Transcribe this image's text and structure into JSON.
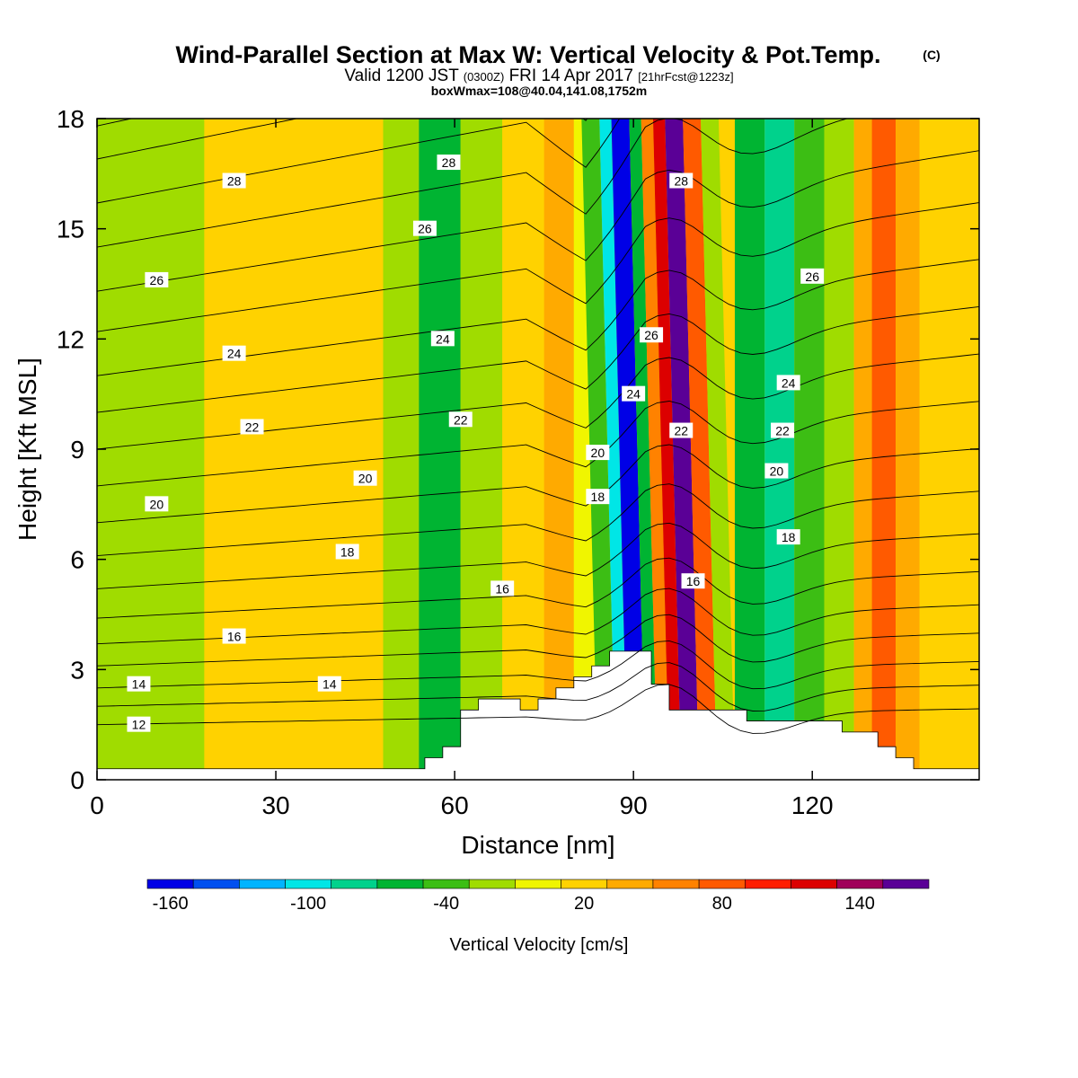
{
  "title": {
    "main": "Wind-Parallel Section at Max W: Vertical Velocity & Pot.Temp.",
    "copyright": "(C)",
    "valid_prefix": "Valid 1200 JST",
    "zulu": "(0300Z)",
    "valid_date": "FRI 14 Apr 2017",
    "forecast": "[21hrFcst@1223z]",
    "subtitle": "boxWmax=108@40.04,141.08,1752m"
  },
  "chart_data": {
    "type": "heatmap",
    "xlabel": "Distance [nm]",
    "ylabel": "Height [Kft MSL]",
    "xlim": [
      0,
      148
    ],
    "ylim": [
      0,
      18
    ],
    "x_ticks": [
      0,
      30,
      60,
      90,
      120
    ],
    "y_ticks": [
      0,
      3,
      6,
      9,
      12,
      15,
      18
    ],
    "colorbar": {
      "label": "Vertical Velocity [cm/s]",
      "tick_labels": [
        "-160",
        "-100",
        "-40",
        "20",
        "80",
        "140"
      ],
      "tick_values": [
        -160,
        -100,
        -40,
        20,
        80,
        140
      ],
      "levels": [
        -170,
        -150,
        -130,
        -110,
        -90,
        -70,
        -50,
        -30,
        -10,
        10,
        30,
        50,
        70,
        90,
        110,
        130,
        150,
        170
      ],
      "colors": [
        "#0000e6",
        "#0050f0",
        "#00b4ff",
        "#00e6e6",
        "#00d28c",
        "#00b432",
        "#3cbe14",
        "#a0dc00",
        "#f0f500",
        "#ffd200",
        "#ffaa00",
        "#ff8200",
        "#ff5a00",
        "#ff1e00",
        "#dc0000",
        "#a0005a",
        "#5a0096"
      ]
    },
    "vertical_velocity_bands": [
      {
        "x0": 0,
        "x1": 18,
        "w": -20
      },
      {
        "x0": 18,
        "x1": 48,
        "w": 10
      },
      {
        "x0": 48,
        "x1": 54,
        "w": -30
      },
      {
        "x0": 54,
        "x1": 61,
        "w": -55
      },
      {
        "x0": 61,
        "x1": 68,
        "w": -20
      },
      {
        "x0": 68,
        "x1": 75,
        "w": 10
      },
      {
        "x0": 75,
        "x1": 80,
        "w": 30
      },
      {
        "x0": 80,
        "x1": 84,
        "w": -10
      },
      {
        "x0": 84,
        "x1": 87,
        "w": -40
      },
      {
        "x0": 87,
        "x1": 89,
        "w": -100
      },
      {
        "x0": 89,
        "x1": 92,
        "w": -160
      },
      {
        "x0": 92,
        "x1": 94,
        "w": -60
      },
      {
        "x0": 94,
        "x1": 96,
        "w": 60
      },
      {
        "x0": 96,
        "x1": 98,
        "w": 120
      },
      {
        "x0": 98,
        "x1": 101,
        "w": 160
      },
      {
        "x0": 101,
        "x1": 104,
        "w": 80
      },
      {
        "x0": 104,
        "x1": 107,
        "w": -20
      },
      {
        "x0": 107,
        "x1": 112,
        "w": -60
      },
      {
        "x0": 112,
        "x1": 117,
        "w": -80
      },
      {
        "x0": 117,
        "x1": 122,
        "w": -50
      },
      {
        "x0": 122,
        "x1": 127,
        "w": -20
      },
      {
        "x0": 127,
        "x1": 130,
        "w": 40
      },
      {
        "x0": 130,
        "x1": 134,
        "w": 80
      },
      {
        "x0": 134,
        "x1": 138,
        "w": 40
      },
      {
        "x0": 138,
        "x1": 148,
        "w": 20
      }
    ],
    "terrain": [
      [
        0,
        0.3
      ],
      [
        55,
        0.3
      ],
      [
        55,
        0.6
      ],
      [
        58,
        0.6
      ],
      [
        58,
        0.9
      ],
      [
        61,
        0.9
      ],
      [
        61,
        1.9
      ],
      [
        64,
        1.9
      ],
      [
        64,
        2.2
      ],
      [
        71,
        2.2
      ],
      [
        71,
        1.9
      ],
      [
        74,
        1.9
      ],
      [
        74,
        2.2
      ],
      [
        77,
        2.2
      ],
      [
        77,
        2.5
      ],
      [
        80,
        2.5
      ],
      [
        80,
        2.8
      ],
      [
        83,
        2.8
      ],
      [
        83,
        3.1
      ],
      [
        86,
        3.1
      ],
      [
        86,
        3.5
      ],
      [
        93,
        3.5
      ],
      [
        93,
        2.6
      ],
      [
        96,
        2.6
      ],
      [
        96,
        1.9
      ],
      [
        109,
        1.9
      ],
      [
        109,
        1.6
      ],
      [
        125,
        1.6
      ],
      [
        125,
        1.3
      ],
      [
        131,
        1.3
      ],
      [
        131,
        0.9
      ],
      [
        134,
        0.9
      ],
      [
        134,
        0.6
      ],
      [
        137,
        0.6
      ],
      [
        137,
        0.3
      ],
      [
        148,
        0.3
      ]
    ],
    "potential_temperature_isotherms": [
      {
        "theta": 12,
        "baseline_kft": 1.5,
        "labels": [
          {
            "x": 7,
            "y": 1.5
          }
        ]
      },
      {
        "theta": 13,
        "baseline_kft": 2.0
      },
      {
        "theta": 14,
        "baseline_kft": 2.5,
        "labels": [
          {
            "x": 7,
            "y": 2.6
          },
          {
            "x": 39,
            "y": 2.6
          }
        ]
      },
      {
        "theta": 15,
        "baseline_kft": 3.1
      },
      {
        "theta": 16,
        "baseline_kft": 3.7,
        "labels": [
          {
            "x": 23,
            "y": 3.9
          },
          {
            "x": 68,
            "y": 5.2
          },
          {
            "x": 100,
            "y": 5.4
          }
        ]
      },
      {
        "theta": 17,
        "baseline_kft": 4.4
      },
      {
        "theta": 18,
        "baseline_kft": 5.2,
        "labels": [
          {
            "x": 42,
            "y": 6.2
          },
          {
            "x": 84,
            "y": 7.7
          },
          {
            "x": 116,
            "y": 6.6
          }
        ]
      },
      {
        "theta": 19,
        "baseline_kft": 6.1
      },
      {
        "theta": 20,
        "baseline_kft": 7.0,
        "labels": [
          {
            "x": 10,
            "y": 7.5
          },
          {
            "x": 45,
            "y": 8.2
          },
          {
            "x": 84,
            "y": 8.9
          },
          {
            "x": 114,
            "y": 8.4
          }
        ]
      },
      {
        "theta": 21,
        "baseline_kft": 8.0
      },
      {
        "theta": 22,
        "baseline_kft": 9.0,
        "labels": [
          {
            "x": 26,
            "y": 9.6
          },
          {
            "x": 61,
            "y": 9.8
          },
          {
            "x": 98,
            "y": 9.5
          },
          {
            "x": 115,
            "y": 9.5
          }
        ]
      },
      {
        "theta": 23,
        "baseline_kft": 10.0
      },
      {
        "theta": 24,
        "baseline_kft": 11.0,
        "labels": [
          {
            "x": 23,
            "y": 11.6
          },
          {
            "x": 58,
            "y": 12.0
          },
          {
            "x": 90,
            "y": 10.5
          },
          {
            "x": 116,
            "y": 10.8
          }
        ]
      },
      {
        "theta": 25,
        "baseline_kft": 12.2
      },
      {
        "theta": 26,
        "baseline_kft": 13.3,
        "labels": [
          {
            "x": 10,
            "y": 13.6
          },
          {
            "x": 55,
            "y": 15.0
          },
          {
            "x": 93,
            "y": 12.1
          },
          {
            "x": 120,
            "y": 13.7
          }
        ]
      },
      {
        "theta": 27,
        "baseline_kft": 14.5
      },
      {
        "theta": 28,
        "baseline_kft": 15.7,
        "labels": [
          {
            "x": 23,
            "y": 16.3
          },
          {
            "x": 59,
            "y": 16.8
          },
          {
            "x": 98,
            "y": 16.3
          }
        ]
      },
      {
        "theta": 29,
        "baseline_kft": 16.9
      },
      {
        "theta": 30,
        "baseline_kft": 17.8
      }
    ]
  }
}
